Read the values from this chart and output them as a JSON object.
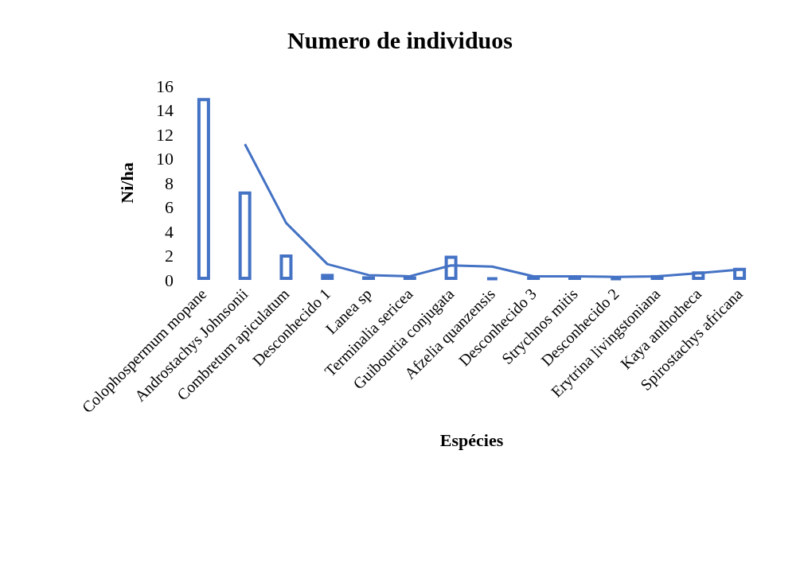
{
  "chart_data": {
    "type": "bar",
    "title": "Numero de individuos",
    "xlabel": "Espécies",
    "ylabel": "Ni/ha",
    "categories": [
      "Colophospermum mopane",
      "Androstachys Johnsonii",
      "Combretum apiculatum",
      "Desconhecido 1",
      "Lanea sp",
      "Terminalia sericea",
      "Guibourtia conjugata",
      "Afzelia quanzensis",
      "Desconhecido 3",
      "Strychnos mitis",
      "Desconhecido 2",
      "Erytrina livingstoniana",
      "Kaya anthotheca",
      "Spirostachys africana"
    ],
    "series": [
      {
        "color": "#4472c4",
        "values": [
          15.0,
          7.3,
          2.1,
          0.5,
          0.3,
          0.3,
          2.0,
          0.2,
          0.3,
          0.3,
          0.2,
          0.4,
          0.7,
          1.0
        ]
      },
      {
        "type": "line",
        "color": "#4472c4",
        "marker": "none",
        "values": [
          null,
          11.2,
          4.7,
          1.3,
          0.4,
          0.3,
          1.2,
          1.1,
          0.3,
          0.3,
          0.25,
          0.3,
          0.55,
          0.85
        ]
      }
    ],
    "ylim": [
      0,
      16
    ],
    "yticks": [
      0,
      2,
      4,
      6,
      8,
      10,
      12,
      14,
      16
    ],
    "grid": false
  }
}
